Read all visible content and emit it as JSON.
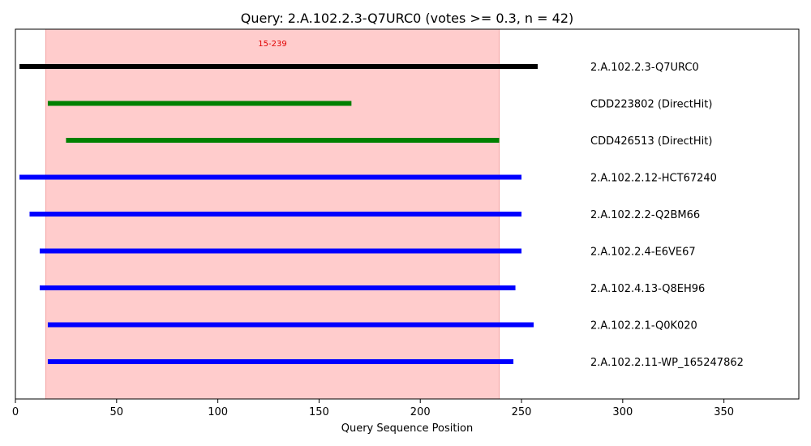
{
  "chart_data": {
    "type": "line",
    "title": "Query: 2.A.102.2.3-Q7URC0 (votes >= 0.3, n = 42)",
    "xlabel": "Query Sequence Position",
    "ylabel": "",
    "xlim": [
      0,
      387
    ],
    "xticks": [
      0,
      50,
      100,
      150,
      200,
      250,
      300,
      350
    ],
    "grid": false,
    "highlight": {
      "start": 15,
      "end": 239,
      "label": "15-239",
      "color": "#ffcccc"
    },
    "series": [
      {
        "name": "2.A.102.2.3-Q7URC0",
        "start": 2,
        "end": 258,
        "color": "#000000"
      },
      {
        "name": "CDD223802 (DirectHit)",
        "start": 16,
        "end": 166,
        "color": "#008000"
      },
      {
        "name": "CDD426513 (DirectHit)",
        "start": 25,
        "end": 239,
        "color": "#008000"
      },
      {
        "name": "2.A.102.2.12-HCT67240",
        "start": 2,
        "end": 250,
        "color": "#0000ff"
      },
      {
        "name": "2.A.102.2.2-Q2BM66",
        "start": 7,
        "end": 250,
        "color": "#0000ff"
      },
      {
        "name": "2.A.102.2.4-E6VE67",
        "start": 12,
        "end": 250,
        "color": "#0000ff"
      },
      {
        "name": "2.A.102.4.13-Q8EH96",
        "start": 12,
        "end": 247,
        "color": "#0000ff"
      },
      {
        "name": "2.A.102.2.1-Q0K020",
        "start": 16,
        "end": 256,
        "color": "#0000ff"
      },
      {
        "name": "2.A.102.2.11-WP_165247862",
        "start": 16,
        "end": 246,
        "color": "#0000ff"
      }
    ]
  }
}
